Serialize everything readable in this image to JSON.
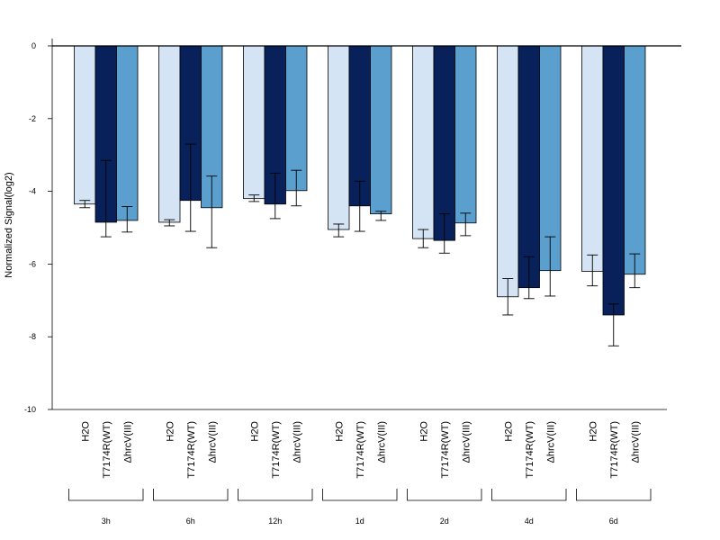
{
  "chart_data": {
    "type": "bar",
    "ylabel": "Normalized Signal(log2)",
    "ylim": [
      -10,
      0.2
    ],
    "yticks": [
      0,
      -2,
      -4,
      -6,
      -8,
      -10
    ],
    "bar_labels": [
      "H2O",
      "T7174R(WT)",
      "ΔhrcV(III)"
    ],
    "groups": [
      "3h",
      "6h",
      "12h",
      "1d",
      "2d",
      "4d",
      "6d"
    ],
    "colors": [
      "#d4e4f4",
      "#08215a",
      "#5b9fcf"
    ],
    "series": [
      {
        "values": [
          -4.35,
          -4.85,
          -4.2,
          -5.05,
          -5.3,
          -6.9,
          -6.2
        ],
        "err_low": [
          -4.45,
          -4.95,
          -4.28,
          -5.25,
          -5.55,
          -7.4,
          -6.6
        ],
        "err_high": [
          -4.25,
          -4.78,
          -4.1,
          -4.9,
          -5.05,
          -6.4,
          -5.75
        ]
      },
      {
        "values": [
          -4.85,
          -4.25,
          -4.35,
          -4.4,
          -5.35,
          -6.65,
          -7.4
        ],
        "err_low": [
          -5.25,
          -5.1,
          -4.75,
          -5.1,
          -5.7,
          -6.95,
          -8.25
        ],
        "err_high": [
          -3.15,
          -2.7,
          -3.5,
          -3.72,
          -4.62,
          -5.8,
          -7.1
        ]
      },
      {
        "values": [
          -4.8,
          -4.45,
          -3.98,
          -4.62,
          -4.87,
          -6.18,
          -6.28
        ],
        "err_low": [
          -5.12,
          -5.55,
          -4.4,
          -4.8,
          -5.22,
          -6.88,
          -6.65
        ],
        "err_high": [
          -4.42,
          -3.58,
          -3.42,
          -4.55,
          -4.6,
          -5.25,
          -5.72
        ]
      }
    ]
  }
}
